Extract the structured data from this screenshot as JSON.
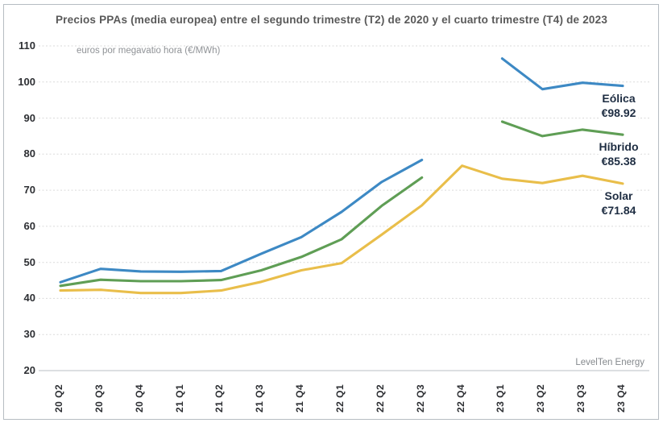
{
  "chart_data": {
    "type": "line",
    "title": "Precios PPAs (media europea) entre el segundo trimestre (T2) de 2020 y el cuarto trimestre (T4) de 2023",
    "unit_label": "euros por megavatio hora (€/MWh)",
    "source_label": "LevelTen Energy",
    "categories": [
      "20 Q2",
      "20 Q3",
      "20 Q4",
      "21 Q1",
      "21 Q2",
      "21 Q3",
      "21 Q4",
      "22 Q1",
      "22 Q2",
      "22 Q3",
      "22 Q4",
      "23 Q1",
      "23 Q2",
      "23 Q3",
      "23 Q4"
    ],
    "series": [
      {
        "name": "Eólica",
        "value_label": "€98.92",
        "final_value": 98.92,
        "color": "#3d89c4",
        "values": [
          44.5,
          48.2,
          47.5,
          47.4,
          47.6,
          52.4,
          57.0,
          64.0,
          72.3,
          78.4,
          null,
          106.5,
          98.0,
          99.8,
          98.92
        ]
      },
      {
        "name": "Híbrido",
        "value_label": "€85.38",
        "final_value": 85.38,
        "color": "#5f9e55",
        "values": [
          43.5,
          45.2,
          44.8,
          44.8,
          45.1,
          47.8,
          51.5,
          56.4,
          65.7,
          73.5,
          null,
          89.0,
          85.0,
          86.8,
          85.38
        ]
      },
      {
        "name": "Solar",
        "value_label": "€71.84",
        "final_value": 71.84,
        "color": "#e9be4a",
        "values": [
          42.2,
          42.4,
          41.5,
          41.5,
          42.2,
          44.6,
          47.8,
          49.8,
          57.7,
          65.8,
          76.8,
          73.2,
          72.0,
          74.0,
          71.84
        ]
      }
    ],
    "ylim": [
      20,
      110
    ],
    "yticks": [
      110,
      100,
      90,
      80,
      70,
      60,
      50,
      40,
      30,
      20
    ],
    "grid": "horizontal-dotted",
    "legend_position": "right-end-of-line",
    "label_color": "#1e2d42"
  }
}
